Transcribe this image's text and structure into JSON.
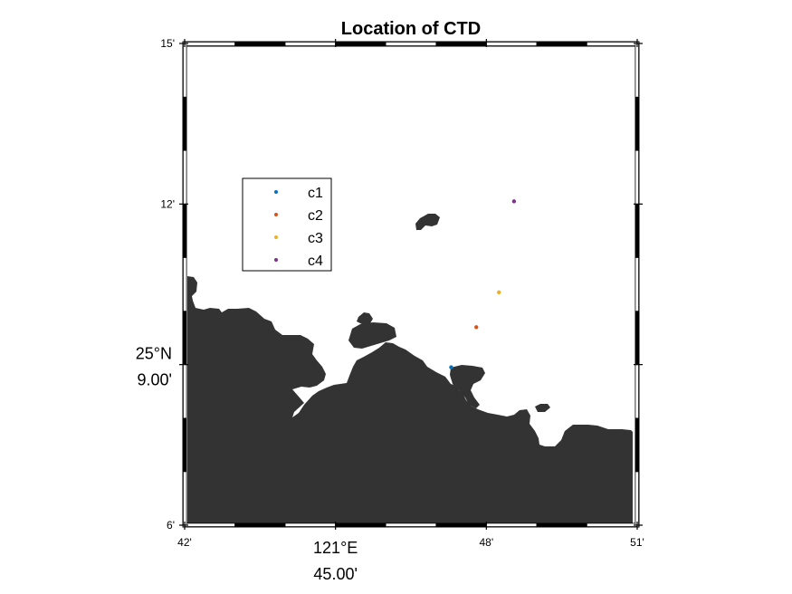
{
  "chart_data": {
    "type": "scatter",
    "title": "Location of CTD",
    "xlabel": "",
    "ylabel": "",
    "x_units": "longitude (minutes past 121°E)",
    "y_units": "latitude (minutes past 25°N)",
    "xlim": [
      42,
      51
    ],
    "ylim": [
      6,
      15
    ],
    "x_ticks": [
      {
        "value": 42,
        "top": "42'",
        "bottom": ""
      },
      {
        "value": 45,
        "top": "121°E",
        "bottom": "45.00'"
      },
      {
        "value": 48,
        "top": "48'",
        "bottom": ""
      },
      {
        "value": 51,
        "top": "51'",
        "bottom": ""
      }
    ],
    "y_ticks": [
      {
        "value": 6,
        "top": "6'",
        "bottom": ""
      },
      {
        "value": 9,
        "top": "25°N",
        "bottom": "9.00'"
      },
      {
        "value": 12,
        "top": "12'",
        "bottom": ""
      },
      {
        "value": 15,
        "top": "15'",
        "bottom": ""
      }
    ],
    "series": [
      {
        "name": "c1",
        "color": "#0072BD",
        "x": [
          47.3
        ],
        "y": [
          8.95
        ]
      },
      {
        "name": "c2",
        "color": "#D95319",
        "x": [
          47.8
        ],
        "y": [
          9.7
        ]
      },
      {
        "name": "c3",
        "color": "#EDB120",
        "x": [
          48.25
        ],
        "y": [
          10.35
        ]
      },
      {
        "name": "c4",
        "color": "#7E2F8E",
        "x": [
          48.55
        ],
        "y": [
          12.05
        ]
      }
    ],
    "legend_position": "upper-left",
    "grid": false,
    "frame": "black-and-white map border",
    "land_color": "#333333"
  }
}
